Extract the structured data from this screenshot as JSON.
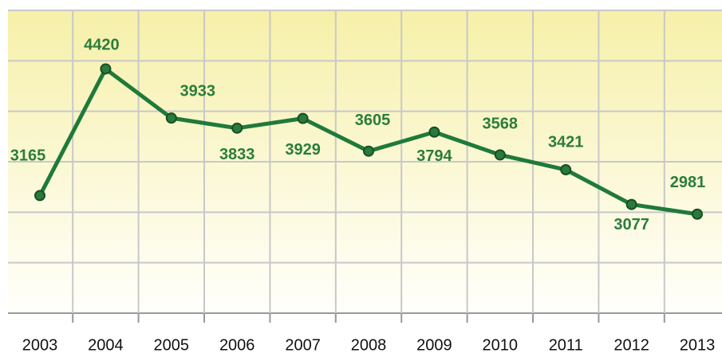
{
  "chart_data": {
    "type": "line",
    "categories": [
      "2003",
      "2004",
      "2005",
      "2006",
      "2007",
      "2008",
      "2009",
      "2010",
      "2011",
      "2012",
      "2013"
    ],
    "values": [
      3165,
      4420,
      3933,
      3833,
      3929,
      3605,
      3794,
      3568,
      3421,
      3077,
      2981
    ],
    "color": "#1f7a3a",
    "ylim": [
      2000,
      5000
    ],
    "yticks": [
      2000,
      2500,
      3000,
      3500,
      4000,
      4500,
      5000
    ],
    "grid": true
  }
}
